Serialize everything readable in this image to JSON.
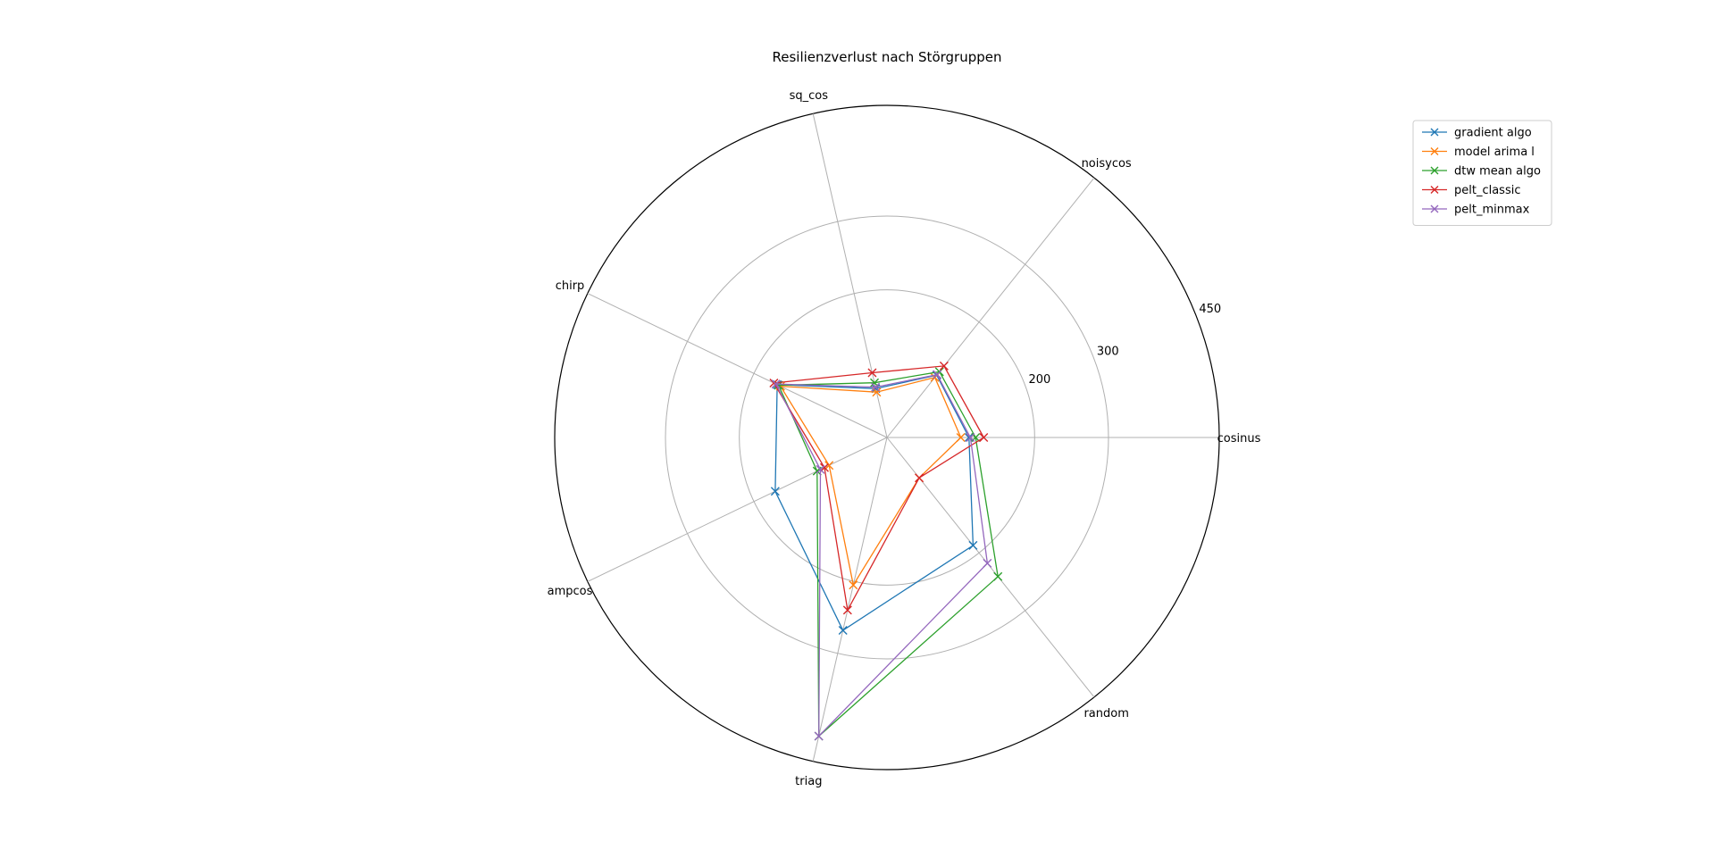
{
  "chart_data": {
    "type": "radar",
    "title": "Resilienzverlust nach Störgruppen",
    "categories": [
      "cosinus",
      "noisycos",
      "sq_cos",
      "chirp",
      "ampcos",
      "triag",
      "random"
    ],
    "r_ticks": [
      "200",
      "300",
      "450"
    ],
    "r_tick_values": [
      200,
      300,
      450
    ],
    "r_range": [
      0,
      450
    ],
    "grid": true,
    "legend_position": "top-right",
    "series": [
      {
        "name": "gradient algo",
        "color": "#1f77b4",
        "values": [
          111,
          108,
          68,
          165,
          168,
          268,
          187
        ]
      },
      {
        "name": "model arima l",
        "color": "#ff7f0e",
        "values": [
          100,
          104,
          63,
          160,
          87,
          205,
          70
        ]
      },
      {
        "name": "dtw mean algo",
        "color": "#2ca02c",
        "values": [
          120,
          114,
          76,
          163,
          105,
          415,
          241
        ]
      },
      {
        "name": "pelt_classic",
        "color": "#d62728",
        "values": [
          131,
          124,
          90,
          170,
          94,
          240,
          70
        ]
      },
      {
        "name": "pelt_minmax",
        "color": "#9467bd",
        "values": [
          113,
          109,
          70,
          167,
          100,
          415,
          218
        ]
      }
    ]
  }
}
